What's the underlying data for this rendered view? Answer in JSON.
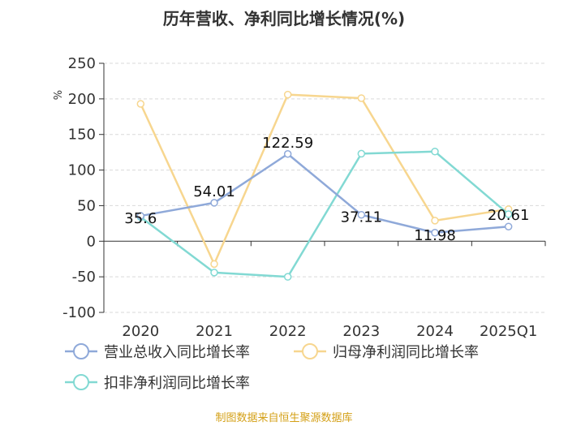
{
  "chart_data": {
    "type": "line",
    "title": "历年营收、净利同比增长情况(%)",
    "ylabel": "%",
    "xlabel": "",
    "ylim": [
      -100,
      250
    ],
    "yticks": [
      -100,
      -50,
      0,
      50,
      100,
      150,
      200,
      250
    ],
    "grid": true,
    "legend_position": "bottom",
    "categories": [
      "2020",
      "2021",
      "2022",
      "2023",
      "2024",
      "2025Q1"
    ],
    "series": [
      {
        "name": "营业总收入同比增长率",
        "color": "#8fa9d9",
        "values": [
          35.6,
          54.01,
          122.59,
          37.11,
          11.98,
          20.61
        ],
        "labels": [
          "35.6",
          "54.01",
          "122.59",
          "37.11",
          "11.98",
          "20.61"
        ]
      },
      {
        "name": "归母净利润同比增长率",
        "color": "#f7d68f",
        "values": [
          193,
          -32,
          206,
          201,
          29,
          45
        ]
      },
      {
        "name": "扣非净利润同比增长率",
        "color": "#82d9d3",
        "values": [
          34,
          -44,
          -50,
          123,
          126,
          38
        ]
      }
    ],
    "source": "制图数据来自恒生聚源数据库"
  }
}
